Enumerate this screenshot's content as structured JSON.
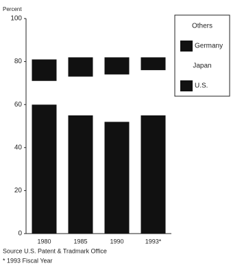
{
  "chart_data": {
    "type": "stacked_bar",
    "y_label": "Percent",
    "categories": [
      "1980",
      "1985",
      "1990",
      "1993*"
    ],
    "series": [
      {
        "name": "U.S.",
        "color": "#111111",
        "values": [
          60,
          55,
          52,
          55
        ]
      },
      {
        "name": "Japan",
        "color": "#ffffff",
        "values": [
          11,
          18,
          22,
          21
        ]
      },
      {
        "name": "Germany",
        "color": "#111111",
        "values": [
          10,
          9,
          8,
          6
        ]
      },
      {
        "name": "Others",
        "color": "#ffffff",
        "values": [
          19,
          18,
          18,
          18
        ]
      }
    ],
    "ylim": [
      0,
      100
    ],
    "yticks": [
      0,
      20,
      40,
      60,
      80,
      100
    ],
    "grid": false,
    "legend": "upper-right",
    "source": "Source  U.S. Patent & Tradmark Office",
    "footnote": "* 1993 Fiscal Year"
  }
}
